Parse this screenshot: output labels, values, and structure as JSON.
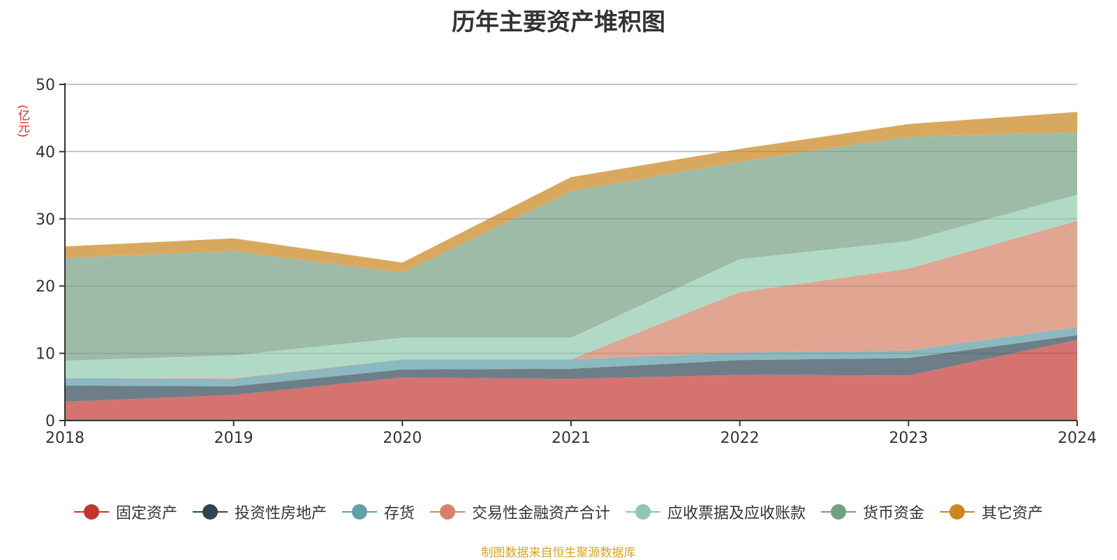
{
  "chart_data": {
    "type": "area",
    "stacked": true,
    "title": "历年主要资产堆积图",
    "ylabel": "(亿元)",
    "xlabel": "",
    "ylim": [
      0,
      50
    ],
    "yticks": [
      0,
      10,
      20,
      30,
      40,
      50
    ],
    "categories": [
      "2018",
      "2019",
      "2020",
      "2021",
      "2022",
      "2023",
      "2024"
    ],
    "grid": true,
    "legend_position": "bottom",
    "series": [
      {
        "name": "固定资产",
        "color": "#c23531",
        "area_color": "#d57370",
        "values": [
          2.8,
          3.8,
          6.4,
          6.2,
          6.8,
          6.7,
          12.0
        ]
      },
      {
        "name": "投资性房地产",
        "color": "#2f4554",
        "area_color": "#6d7e89",
        "values": [
          2.4,
          1.3,
          1.2,
          1.5,
          2.2,
          2.6,
          0.7
        ]
      },
      {
        "name": "存货",
        "color": "#61a0a8",
        "area_color": "#8bb9bf",
        "values": [
          1.1,
          1.1,
          1.5,
          1.4,
          1.1,
          1.1,
          1.2
        ]
      },
      {
        "name": "交易性金融资产合计",
        "color": "#d48265",
        "area_color": "#e0a692",
        "values": [
          0.0,
          0.1,
          0.0,
          0.0,
          9.0,
          12.2,
          15.8
        ]
      },
      {
        "name": "应收票据及应收账款",
        "color": "#91c7ae",
        "area_color": "#b1dac6",
        "values": [
          2.6,
          3.4,
          3.2,
          3.2,
          4.9,
          4.1,
          3.9
        ]
      },
      {
        "name": "货币资金",
        "color": "#749f83",
        "area_color": "#9ebba8",
        "values": [
          15.3,
          15.5,
          9.7,
          21.8,
          14.5,
          15.5,
          9.3
        ]
      },
      {
        "name": "其它资产",
        "color": "#ca8622",
        "area_color": "#d9a85f",
        "values": [
          1.7,
          1.9,
          1.5,
          2.1,
          1.9,
          1.9,
          3.0
        ]
      }
    ]
  },
  "source_note": "制图数据来自恒生聚源数据库"
}
